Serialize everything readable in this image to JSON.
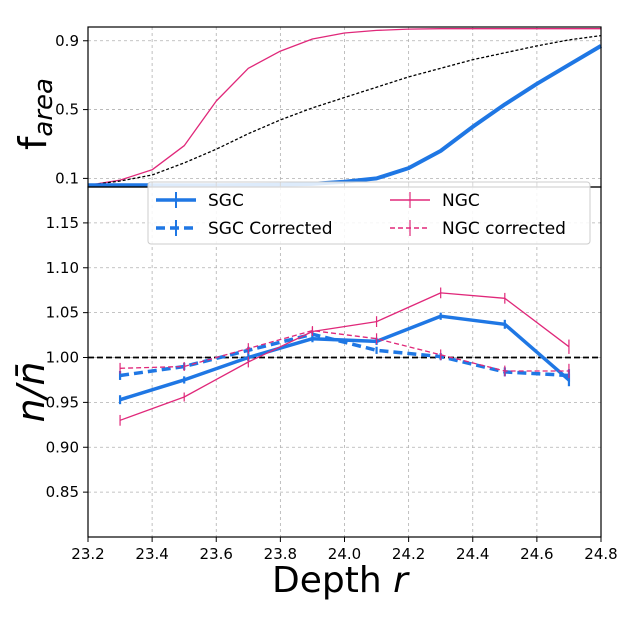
{
  "chart_data": [
    {
      "type": "line",
      "panel": "top",
      "ylabel": "f",
      "ylabel_subscript": "area",
      "xlim": [
        23.2,
        24.8
      ],
      "ylim": [
        0.05,
        0.98
      ],
      "yticks": [
        0.1,
        0.5,
        0.9
      ],
      "ytick_labels": [
        "0.1",
        "0.5",
        "0.9"
      ],
      "grid": true,
      "colors": {
        "sgc": "#1f77e4",
        "ngc": "#e0287a",
        "total": "#000000"
      },
      "series": [
        {
          "name": "NGC",
          "style": "solid",
          "color": "#e0287a",
          "x": [
            23.2,
            23.3,
            23.4,
            23.5,
            23.6,
            23.7,
            23.8,
            23.9,
            24.0,
            24.1,
            24.2,
            24.3,
            24.4,
            24.5,
            24.6,
            24.7,
            24.8
          ],
          "y": [
            0.06,
            0.09,
            0.15,
            0.29,
            0.55,
            0.74,
            0.84,
            0.91,
            0.945,
            0.96,
            0.968,
            0.97,
            0.97,
            0.97,
            0.97,
            0.97,
            0.97
          ]
        },
        {
          "name": "Total",
          "style": "dashed",
          "color": "#000000",
          "x": [
            23.2,
            23.3,
            23.4,
            23.5,
            23.6,
            23.7,
            23.8,
            23.9,
            24.0,
            24.1,
            24.2,
            24.3,
            24.4,
            24.5,
            24.6,
            24.7,
            24.8
          ],
          "y": [
            0.06,
            0.085,
            0.12,
            0.19,
            0.27,
            0.36,
            0.44,
            0.51,
            0.57,
            0.63,
            0.69,
            0.74,
            0.79,
            0.83,
            0.87,
            0.905,
            0.93
          ]
        },
        {
          "name": "SGC",
          "style": "solid",
          "color": "#1f77e4",
          "x": [
            23.2,
            23.4,
            23.6,
            23.8,
            23.9,
            24.0,
            24.1,
            24.2,
            24.3,
            24.4,
            24.5,
            24.6,
            24.7,
            24.8
          ],
          "y": [
            0.06,
            0.06,
            0.06,
            0.063,
            0.068,
            0.08,
            0.1,
            0.16,
            0.26,
            0.4,
            0.53,
            0.65,
            0.76,
            0.87
          ]
        }
      ]
    },
    {
      "type": "line",
      "panel": "bottom",
      "xlabel": "Depth",
      "xlabel_var": "r",
      "ylabel": "n/n̄",
      "xlim": [
        23.2,
        24.8
      ],
      "ylim": [
        0.8,
        1.19
      ],
      "xticks": [
        23.2,
        23.4,
        23.6,
        23.8,
        24.0,
        24.2,
        24.4,
        24.6,
        24.8
      ],
      "xtick_labels": [
        "23.2",
        "23.4",
        "23.6",
        "23.8",
        "24.0",
        "24.2",
        "24.4",
        "24.6",
        "24.8"
      ],
      "yticks": [
        0.85,
        0.9,
        0.95,
        1.0,
        1.05,
        1.1,
        1.15
      ],
      "ytick_labels": [
        "0.85",
        "0.90",
        "0.95",
        "1.00",
        "1.05",
        "1.10",
        "1.15"
      ],
      "reference_line": 1.0,
      "grid": true,
      "legend_position": "top-center",
      "x": [
        23.3,
        23.5,
        23.7,
        23.9,
        24.1,
        24.3,
        24.5,
        24.7
      ],
      "series": [
        {
          "name": "SGC",
          "style": "solid",
          "width": "thick",
          "color": "#1f77e4",
          "values": [
            0.953,
            0.975,
            1.0,
            1.021,
            1.018,
            1.046,
            1.037,
            0.975
          ],
          "errors": [
            0.005,
            0.004,
            0.004,
            0.004,
            0.004,
            0.004,
            0.005,
            0.007
          ]
        },
        {
          "name": "SGC Corrected",
          "style": "dashed",
          "width": "thick",
          "color": "#1f77e4",
          "values": [
            0.98,
            0.99,
            1.008,
            1.026,
            1.008,
            1.001,
            0.984,
            0.98
          ],
          "errors": [
            0.005,
            0.004,
            0.004,
            0.004,
            0.004,
            0.004,
            0.005,
            0.007
          ]
        },
        {
          "name": "NGC",
          "style": "solid",
          "width": "thin",
          "color": "#e0287a",
          "values": [
            0.93,
            0.956,
            0.995,
            1.029,
            1.04,
            1.072,
            1.066,
            1.012
          ],
          "errors": [
            0.006,
            0.005,
            0.006,
            0.005,
            0.006,
            0.006,
            0.006,
            0.008
          ]
        },
        {
          "name": "NGC corrected",
          "style": "dashed",
          "width": "thin",
          "color": "#e0287a",
          "values": [
            0.988,
            0.99,
            1.01,
            1.03,
            1.021,
            1.003,
            0.985,
            0.985
          ],
          "errors": [
            0.006,
            0.005,
            0.006,
            0.005,
            0.006,
            0.006,
            0.006,
            0.008
          ]
        }
      ]
    }
  ]
}
